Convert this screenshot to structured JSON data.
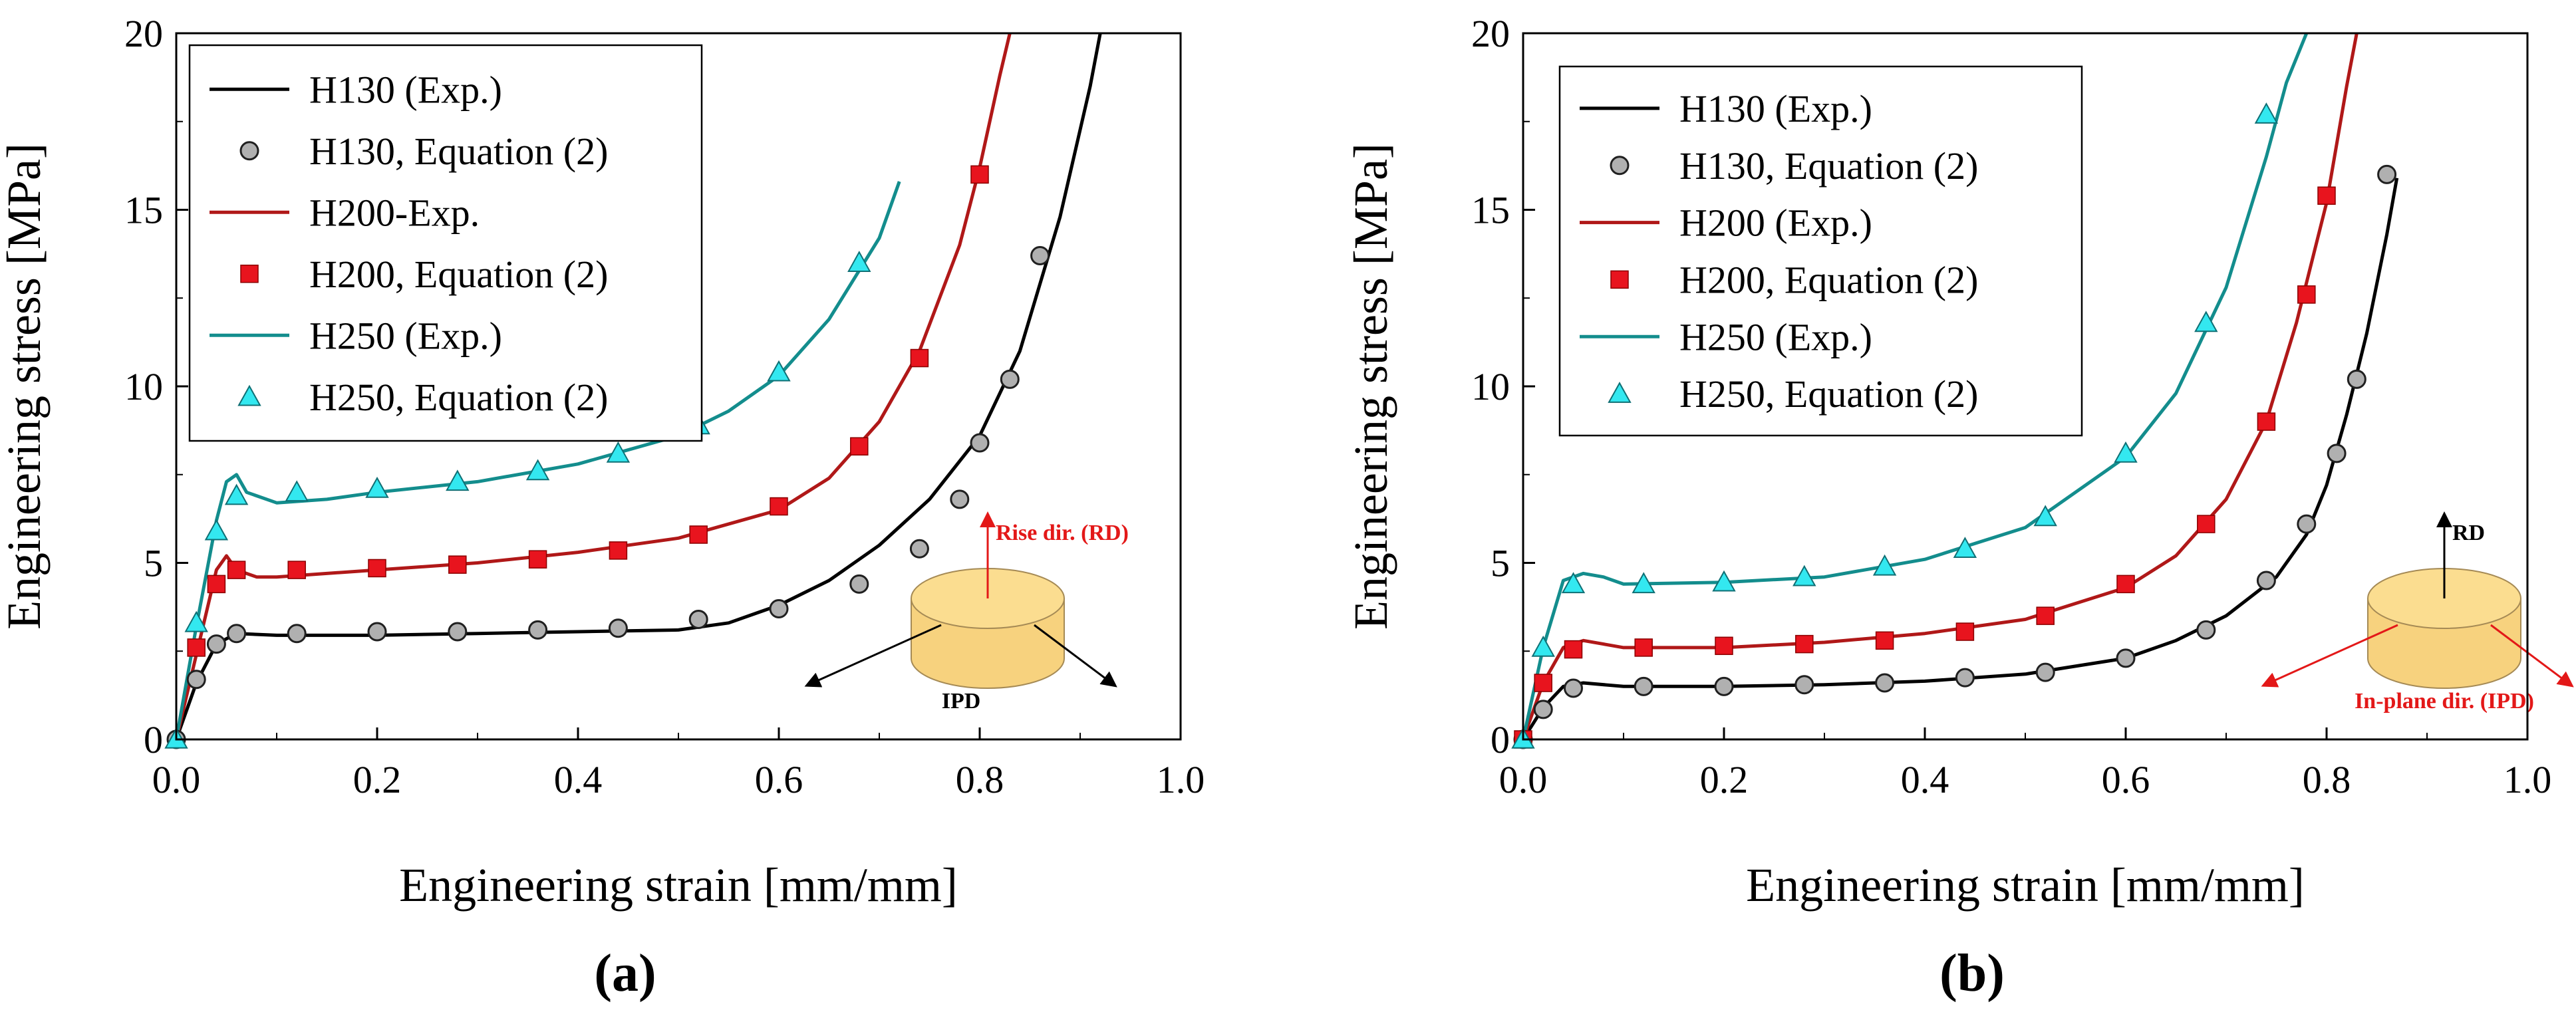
{
  "chart_data": [
    {
      "type": "line",
      "caption": "(a)",
      "xlabel": "Engineering strain [mm/mm]",
      "ylabel": "Engineering stress [MPa]",
      "xlim": [
        0,
        1.0
      ],
      "ylim": [
        0,
        20
      ],
      "xticks": [
        "0.0",
        "0.2",
        "0.4",
        "0.6",
        "0.8",
        "1.0"
      ],
      "yticks": [
        "0",
        "5",
        "10",
        "15",
        "20"
      ],
      "legend_position": "top-left",
      "legend": [
        {
          "label": "H130 (Exp.)",
          "kind": "line",
          "color": "#000000"
        },
        {
          "label": "H130, Equation (2)",
          "kind": "circle",
          "color": "#b0b0b0"
        },
        {
          "label": "H200-Exp.",
          "kind": "line",
          "color": "#b01818"
        },
        {
          "label": "H200, Equation (2)",
          "kind": "square",
          "color": "#e8141e"
        },
        {
          "label": "H250 (Exp.)",
          "kind": "line",
          "color": "#138d8d"
        },
        {
          "label": "H250, Equation (2)",
          "kind": "triangle",
          "color": "#33e8f0"
        }
      ],
      "inset": {
        "top_label": "Rise dir. (RD)",
        "bottom_label": "IPD",
        "top_color": "#e31818",
        "bottom_color": "#000000"
      },
      "series": [
        {
          "name": "H130 (Exp.)",
          "color": "#000000",
          "x": [
            0,
            0.02,
            0.04,
            0.06,
            0.1,
            0.2,
            0.3,
            0.4,
            0.5,
            0.55,
            0.6,
            0.65,
            0.7,
            0.75,
            0.8,
            0.84,
            0.88,
            0.91,
            0.92
          ],
          "y": [
            0,
            1.6,
            2.7,
            3.0,
            2.95,
            2.95,
            3.0,
            3.05,
            3.1,
            3.3,
            3.8,
            4.5,
            5.5,
            6.8,
            8.6,
            11.0,
            14.8,
            18.5,
            20
          ]
        },
        {
          "name": "H130, Equation (2)",
          "color": "#b0b0b0",
          "marker": "circle",
          "x": [
            0,
            0.02,
            0.04,
            0.06,
            0.12,
            0.2,
            0.28,
            0.36,
            0.44,
            0.52,
            0.6,
            0.68,
            0.74,
            0.78,
            0.8,
            0.83,
            0.86
          ],
          "y": [
            0,
            1.7,
            2.7,
            3.0,
            3.0,
            3.05,
            3.05,
            3.1,
            3.15,
            3.4,
            3.7,
            4.4,
            5.4,
            6.8,
            8.4,
            10.2,
            13.7
          ]
        },
        {
          "name": "H200-Exp.",
          "color": "#b01818",
          "x": [
            0,
            0.02,
            0.04,
            0.05,
            0.06,
            0.08,
            0.1,
            0.2,
            0.3,
            0.4,
            0.5,
            0.6,
            0.65,
            0.7,
            0.74,
            0.78,
            0.8,
            0.82,
            0.83
          ],
          "y": [
            0,
            2.4,
            4.8,
            5.2,
            4.8,
            4.6,
            4.6,
            4.8,
            5.0,
            5.3,
            5.7,
            6.5,
            7.4,
            9.0,
            11.0,
            14.0,
            16.2,
            18.8,
            20
          ]
        },
        {
          "name": "H200, Equation (2)",
          "color": "#e8141e",
          "marker": "square",
          "x": [
            0.02,
            0.04,
            0.06,
            0.12,
            0.2,
            0.28,
            0.36,
            0.44,
            0.52,
            0.6,
            0.68,
            0.74,
            0.8
          ],
          "y": [
            2.6,
            4.4,
            4.8,
            4.8,
            4.85,
            4.95,
            5.1,
            5.35,
            5.8,
            6.6,
            8.3,
            10.8,
            16.0
          ]
        },
        {
          "name": "H250 (Exp.)",
          "color": "#138d8d",
          "x": [
            0,
            0.02,
            0.04,
            0.05,
            0.06,
            0.07,
            0.1,
            0.15,
            0.2,
            0.3,
            0.4,
            0.5,
            0.55,
            0.6,
            0.65,
            0.7,
            0.72
          ],
          "y": [
            0,
            3.2,
            6.2,
            7.3,
            7.5,
            7.0,
            6.7,
            6.8,
            7.0,
            7.3,
            7.8,
            8.6,
            9.3,
            10.3,
            11.9,
            14.2,
            15.8
          ]
        },
        {
          "name": "H250, Equation (2)",
          "color": "#33e8f0",
          "marker": "triangle",
          "x": [
            0,
            0.02,
            0.04,
            0.06,
            0.12,
            0.2,
            0.28,
            0.36,
            0.44,
            0.52,
            0.6,
            0.68
          ],
          "y": [
            0,
            3.3,
            5.9,
            6.9,
            7.0,
            7.1,
            7.3,
            7.6,
            8.1,
            8.9,
            10.4,
            13.5
          ]
        }
      ]
    },
    {
      "type": "line",
      "caption": "(b)",
      "xlabel": "Engineering strain [mm/mm]",
      "ylabel": "Engineering stress [MPa]",
      "xlim": [
        0,
        1.0
      ],
      "ylim": [
        0,
        20
      ],
      "xticks": [
        "0.0",
        "0.2",
        "0.4",
        "0.6",
        "0.8",
        "1.0"
      ],
      "yticks": [
        "0",
        "5",
        "10",
        "15",
        "20"
      ],
      "legend_position": "top-left",
      "legend": [
        {
          "label": "H130 (Exp.)",
          "kind": "line",
          "color": "#000000"
        },
        {
          "label": "H130, Equation (2)",
          "kind": "circle",
          "color": "#b0b0b0"
        },
        {
          "label": "H200 (Exp.)",
          "kind": "line",
          "color": "#b01818"
        },
        {
          "label": "H200, Equation (2)",
          "kind": "square",
          "color": "#e8141e"
        },
        {
          "label": "H250 (Exp.)",
          "kind": "line",
          "color": "#138d8d"
        },
        {
          "label": "H250, Equation (2)",
          "kind": "triangle",
          "color": "#33e8f0"
        }
      ],
      "inset": {
        "top_label": "RD",
        "bottom_label": "In-plane dir. (IPD)",
        "top_color": "#000000",
        "bottom_color": "#e31818"
      },
      "series": [
        {
          "name": "H130 (Exp.)",
          "color": "#000000",
          "x": [
            0,
            0.02,
            0.04,
            0.06,
            0.1,
            0.2,
            0.3,
            0.4,
            0.5,
            0.6,
            0.65,
            0.7,
            0.75,
            0.78,
            0.8,
            0.82,
            0.84,
            0.86,
            0.87
          ],
          "y": [
            0,
            0.9,
            1.5,
            1.6,
            1.5,
            1.5,
            1.55,
            1.65,
            1.85,
            2.3,
            2.8,
            3.5,
            4.6,
            5.8,
            7.2,
            9.2,
            11.5,
            14.3,
            15.9
          ]
        },
        {
          "name": "H130, Equation (2)",
          "color": "#b0b0b0",
          "marker": "circle",
          "x": [
            0,
            0.02,
            0.05,
            0.12,
            0.2,
            0.28,
            0.36,
            0.44,
            0.52,
            0.6,
            0.68,
            0.74,
            0.78,
            0.81,
            0.83,
            0.86
          ],
          "y": [
            0,
            0.85,
            1.45,
            1.5,
            1.5,
            1.55,
            1.6,
            1.75,
            1.9,
            2.3,
            3.1,
            4.5,
            6.1,
            8.1,
            10.2,
            16.0
          ]
        },
        {
          "name": "H200 (Exp.)",
          "color": "#b01818",
          "x": [
            0,
            0.02,
            0.04,
            0.06,
            0.08,
            0.1,
            0.2,
            0.3,
            0.4,
            0.5,
            0.6,
            0.65,
            0.7,
            0.74,
            0.77,
            0.8,
            0.82,
            0.83
          ],
          "y": [
            0,
            1.6,
            2.6,
            2.8,
            2.7,
            2.6,
            2.6,
            2.75,
            3.0,
            3.4,
            4.3,
            5.2,
            6.8,
            9.0,
            11.8,
            15.2,
            18.5,
            20
          ]
        },
        {
          "name": "H200, Equation (2)",
          "color": "#e8141e",
          "marker": "square",
          "x": [
            0,
            0.02,
            0.05,
            0.12,
            0.2,
            0.28,
            0.36,
            0.44,
            0.52,
            0.6,
            0.68,
            0.74,
            0.78,
            0.8
          ],
          "y": [
            0,
            1.6,
            2.55,
            2.6,
            2.65,
            2.7,
            2.8,
            3.05,
            3.5,
            4.4,
            6.1,
            9.0,
            12.6,
            15.4
          ]
        },
        {
          "name": "H250 (Exp.)",
          "color": "#138d8d",
          "x": [
            0,
            0.02,
            0.04,
            0.06,
            0.08,
            0.1,
            0.2,
            0.3,
            0.4,
            0.5,
            0.6,
            0.65,
            0.7,
            0.74,
            0.76,
            0.78
          ],
          "y": [
            0,
            2.6,
            4.5,
            4.7,
            4.6,
            4.4,
            4.45,
            4.6,
            5.1,
            6.0,
            8.0,
            9.8,
            12.8,
            16.5,
            18.6,
            20
          ]
        },
        {
          "name": "H250, Equation (2)",
          "color": "#33e8f0",
          "marker": "triangle",
          "x": [
            0,
            0.02,
            0.05,
            0.12,
            0.2,
            0.28,
            0.36,
            0.44,
            0.52,
            0.6,
            0.68,
            0.74
          ],
          "y": [
            0,
            2.6,
            4.4,
            4.4,
            4.45,
            4.6,
            4.9,
            5.4,
            6.3,
            8.1,
            11.8,
            17.7
          ]
        }
      ]
    }
  ]
}
